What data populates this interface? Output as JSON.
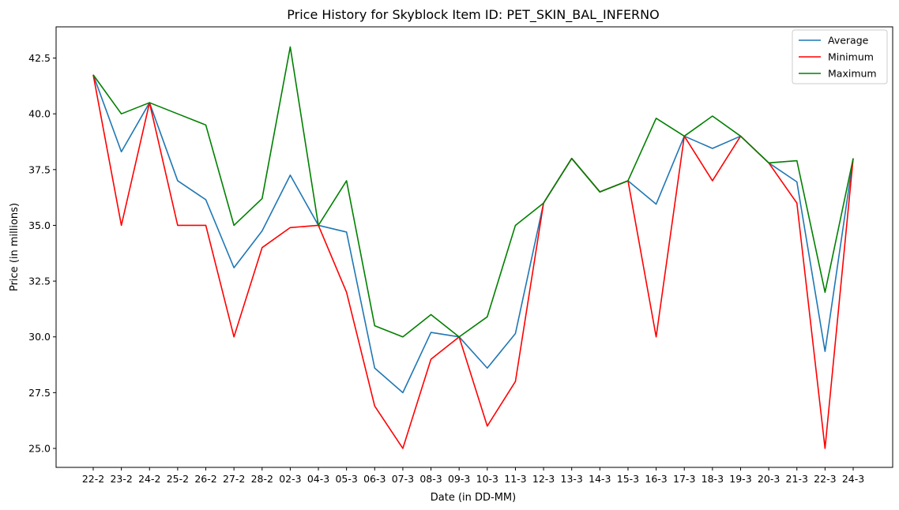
{
  "chart_data": {
    "type": "line",
    "title": "Price History for Skyblock Item ID: PET_SKIN_BAL_INFERNO",
    "xlabel": "Date (in DD-MM)",
    "ylabel": "Price (in millions)",
    "categories": [
      "22-2",
      "23-2",
      "24-2",
      "25-2",
      "26-2",
      "27-2",
      "28-2",
      "02-3",
      "04-3",
      "05-3",
      "06-3",
      "07-3",
      "08-3",
      "09-3",
      "10-3",
      "11-3",
      "12-3",
      "13-3",
      "14-3",
      "15-3",
      "16-3",
      "17-3",
      "18-3",
      "19-3",
      "20-3",
      "21-3",
      "22-3",
      "24-3"
    ],
    "ylim": [
      24.15,
      43.9
    ],
    "yticks": [
      25.0,
      27.5,
      30.0,
      32.5,
      35.0,
      37.5,
      40.0,
      42.5
    ],
    "ytick_labels": [
      "25.0",
      "27.5",
      "30.0",
      "32.5",
      "35.0",
      "37.5",
      "40.0",
      "42.5"
    ],
    "grid": false,
    "legend_position": "top-right",
    "series": [
      {
        "name": "Average",
        "color": "#1f77b4",
        "values": [
          41.75,
          38.3,
          40.5,
          37.0,
          36.15,
          33.1,
          34.75,
          37.25,
          35.0,
          34.7,
          28.6,
          27.5,
          30.2,
          30.0,
          28.6,
          30.15,
          36.0,
          38.0,
          36.5,
          37.0,
          35.95,
          39.0,
          38.45,
          39.0,
          37.8,
          36.95,
          29.35,
          38.0
        ]
      },
      {
        "name": "Minimum",
        "color": "#ff0000",
        "values": [
          41.75,
          35.0,
          40.5,
          35.0,
          35.0,
          30.0,
          34.0,
          34.9,
          35.0,
          32.0,
          26.9,
          25.0,
          29.0,
          30.0,
          26.0,
          28.0,
          36.0,
          38.0,
          36.5,
          37.0,
          30.0,
          39.0,
          37.0,
          39.0,
          37.8,
          36.0,
          25.0,
          38.0
        ]
      },
      {
        "name": "Maximum",
        "color": "#008000",
        "values": [
          41.75,
          40.0,
          40.5,
          40.0,
          39.5,
          35.0,
          36.2,
          43.0,
          35.0,
          37.0,
          30.5,
          30.0,
          31.0,
          30.0,
          30.9,
          35.0,
          36.0,
          38.0,
          36.5,
          37.0,
          39.8,
          39.0,
          39.9,
          39.0,
          37.8,
          37.9,
          32.0,
          38.0
        ]
      }
    ]
  }
}
